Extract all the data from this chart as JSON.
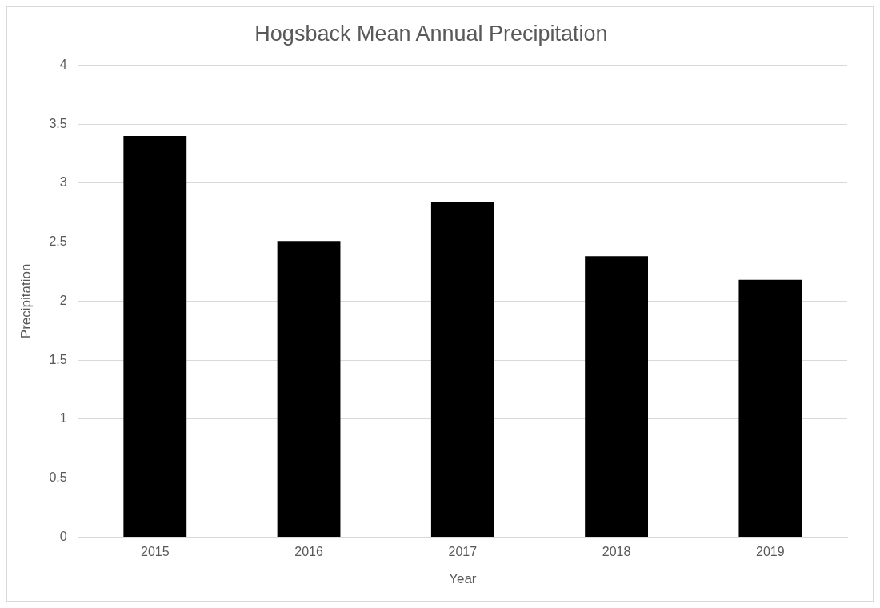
{
  "chart_data": {
    "type": "bar",
    "title": "Hogsback Mean Annual Precipitation",
    "xlabel": "Year",
    "ylabel": "Precipitation",
    "categories": [
      "2015",
      "2016",
      "2017",
      "2018",
      "2019"
    ],
    "values": [
      3.4,
      2.51,
      2.84,
      2.38,
      2.18
    ],
    "color": "#000000",
    "ylim": [
      0,
      4
    ],
    "yticks": [
      0,
      0.5,
      1,
      1.5,
      2,
      2.5,
      3,
      3.5,
      4
    ],
    "grid": "y"
  }
}
